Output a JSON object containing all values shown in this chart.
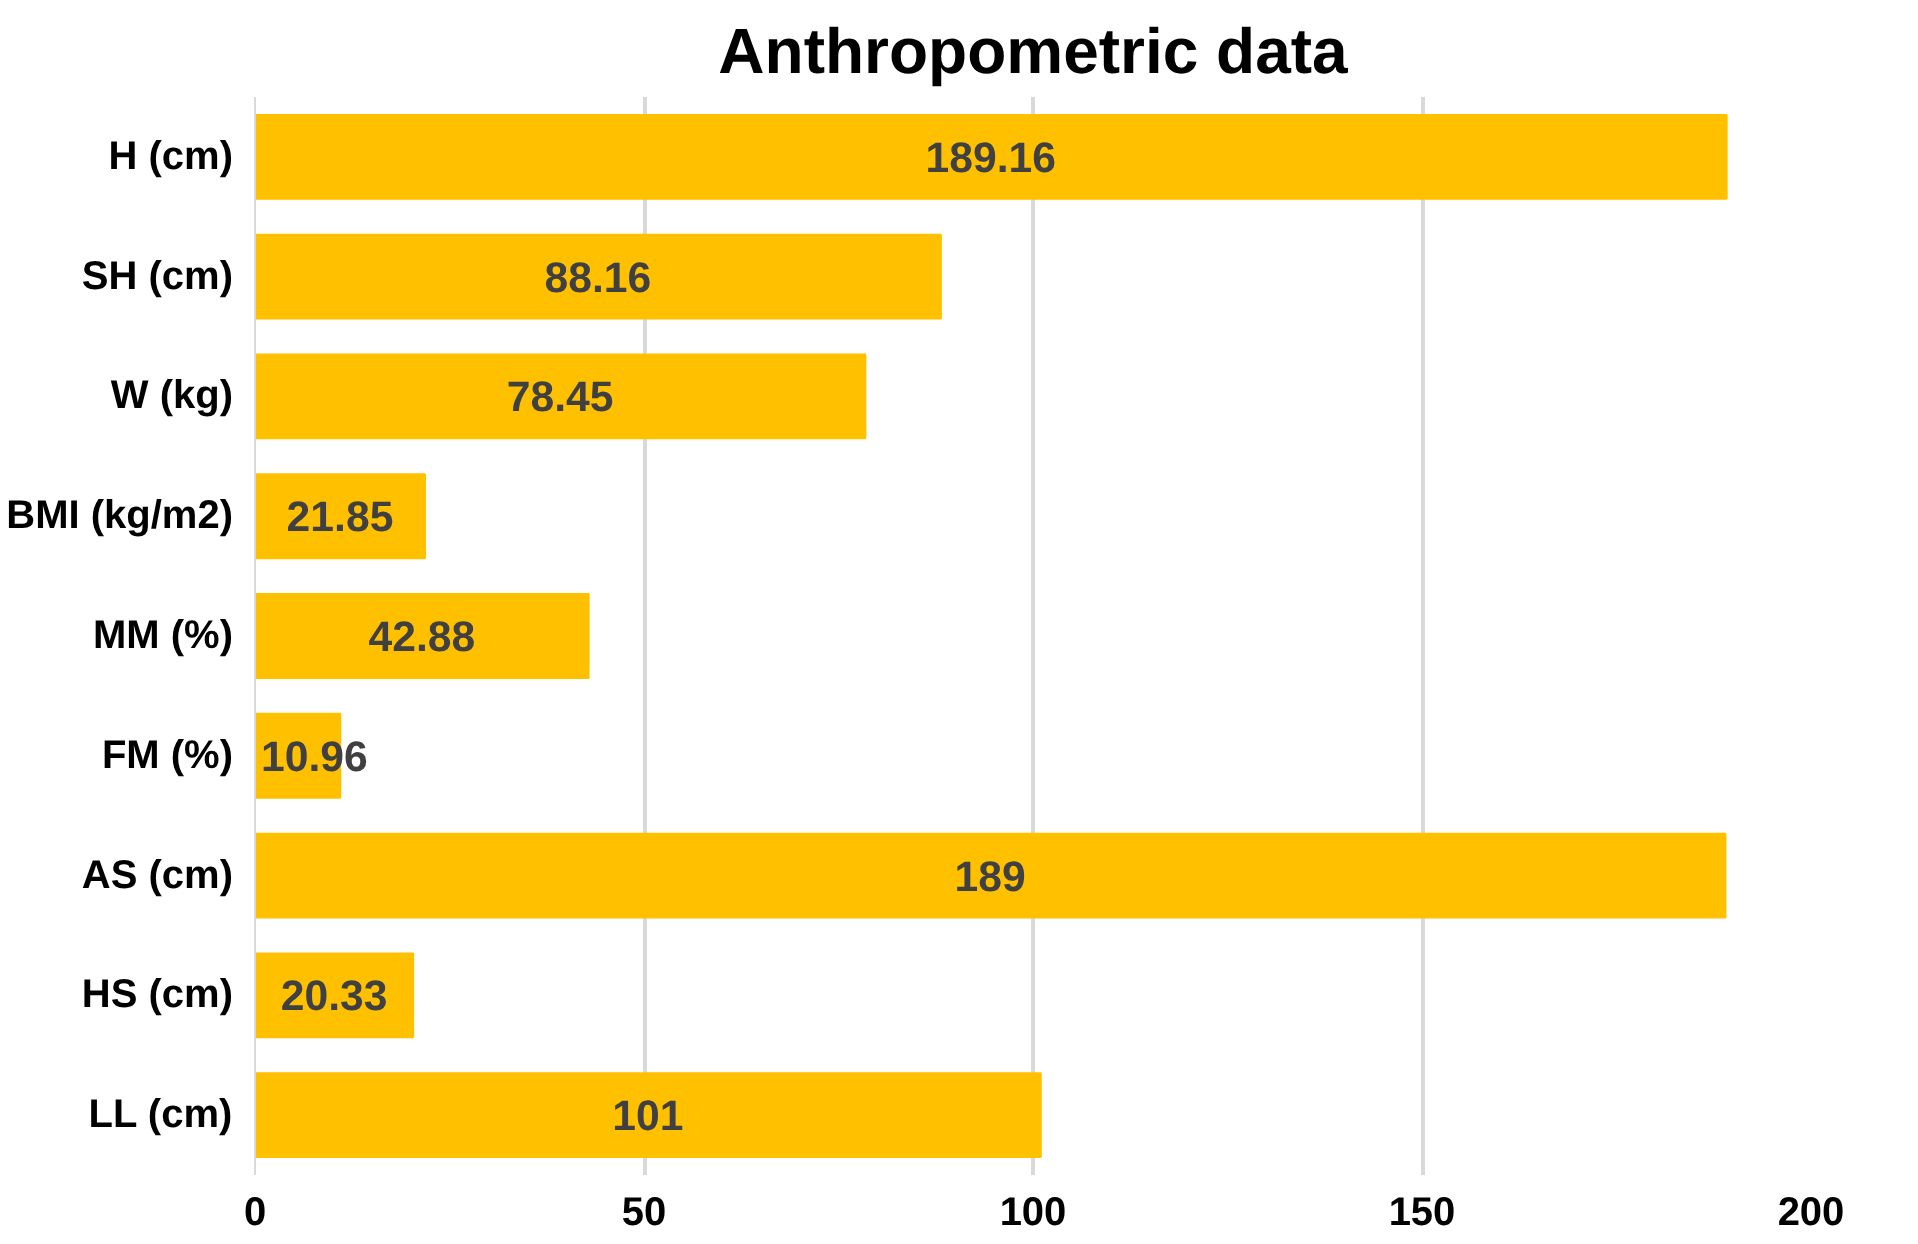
{
  "chart_data": {
    "type": "bar",
    "orientation": "horizontal",
    "title": "Anthropometric data",
    "categories": [
      "H (cm)",
      "SH (cm)",
      "W (kg)",
      "BMI (kg/m2)",
      "MM (%)",
      "FM (%)",
      "AS (cm)",
      "HS (cm)",
      "LL (cm)"
    ],
    "values": [
      189.16,
      88.16,
      78.45,
      21.85,
      42.88,
      10.96,
      189,
      20.33,
      101
    ],
    "color": "#ffc000",
    "xlim": [
      0,
      200
    ],
    "xticks": [
      0,
      50,
      100,
      150,
      200
    ],
    "grid": "x",
    "data_labels": true
  }
}
